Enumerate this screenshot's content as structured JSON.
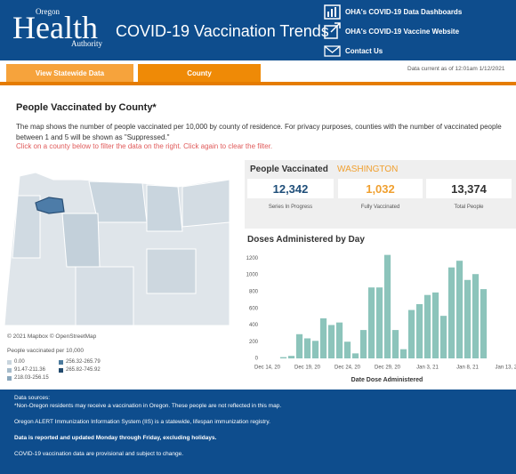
{
  "header": {
    "logo_top": "Oregon",
    "logo_main": "Health",
    "logo_bottom": "Authority",
    "title": "COVID-19 Vaccination Trends",
    "links": [
      "OHA's COVID-19 Data Dashboards",
      "OHA's COVID-19 Vaccine Website",
      "Contact Us"
    ]
  },
  "tabs": [
    "View Statewide Data",
    "County"
  ],
  "data_current": "Data current as of 12:01am 1/12/2021",
  "section": {
    "title": "People Vaccinated by County*",
    "description": "The map shows the number of people vaccinated per 10,000 by county of residence. For privacy purposes, counties with the number of vaccinated people between 1 and 5 will be shown as \"Suppressed.\"",
    "instruction": "Click on a county below to filter the data on the right. Click again to clear the filter."
  },
  "map": {
    "attribution": "© 2021 Mapbox © OpenStreetMap",
    "legend": {
      "title": "People vaccinated per 10,000",
      "items": [
        {
          "label": "0.00",
          "color": "#c9d5de"
        },
        {
          "label": "91.47-211.36",
          "color": "#a7bccb"
        },
        {
          "label": "218.03-256.15",
          "color": "#8aa7bc"
        },
        {
          "label": "256.32-265.79",
          "color": "#4d7b9e"
        },
        {
          "label": "265.82-745.92",
          "color": "#234b6e"
        }
      ]
    }
  },
  "summary": {
    "title": "People Vaccinated",
    "selected_county": "WASHINGTON",
    "stats": [
      {
        "value": "12,342",
        "label": "Series In Progress",
        "color": "#1f4e79"
      },
      {
        "value": "1,032",
        "label": "Fully Vaccinated",
        "color": "#f0a030"
      },
      {
        "value": "13,374",
        "label": "Total People",
        "color": "#333333"
      }
    ]
  },
  "chart_data": {
    "type": "bar",
    "title": "Doses Administered by Day",
    "x_label": "Date Dose Administered",
    "categories": [
      "Dec 14, 20",
      null,
      null,
      null,
      null,
      "Dec 19, 20",
      null,
      null,
      null,
      null,
      "Dec 24, 20",
      null,
      null,
      null,
      null,
      "Dec 29, 20",
      null,
      null,
      null,
      null,
      "Jan 3, 21",
      null,
      null,
      null,
      null,
      "Jan 8, 21",
      null,
      null,
      null,
      null,
      "Jan 13, 21"
    ],
    "values": [
      null,
      null,
      15,
      30,
      290,
      240,
      210,
      480,
      400,
      430,
      200,
      60,
      340,
      850,
      850,
      1240,
      340,
      110,
      580,
      650,
      760,
      790,
      510,
      1090,
      1170,
      940,
      1010,
      830,
      null,
      null,
      null
    ],
    "color": "#8cc4bb",
    "ylim": [
      0,
      1300
    ],
    "yticks": [
      0,
      200,
      400,
      600,
      800,
      1000,
      1200
    ]
  },
  "footer": {
    "sources_title": "Data sources:",
    "note": "*Non-Oregon residents may receive a vaccination in Oregon. These people are not reflected in this map.",
    "registry": "Oregon ALERT Immunization Information System (IIS) is a statewide, lifespan immunization registry.",
    "update_note": "Data is reported and updated Monday through Friday, excluding holidays.",
    "provisional": "COVID-19 vaccination data are provisional and subject to change."
  }
}
